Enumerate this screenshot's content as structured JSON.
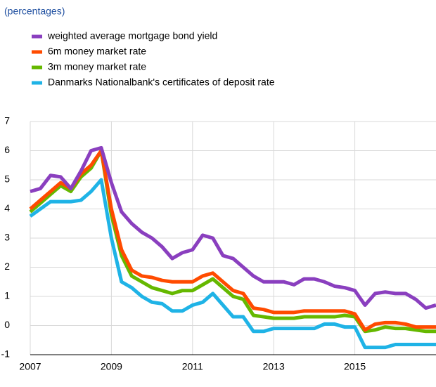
{
  "chart_data": {
    "type": "line",
    "subtitle": "(percentages)",
    "x": [
      2007,
      2007.25,
      2007.5,
      2007.75,
      2008,
      2008.25,
      2008.5,
      2008.75,
      2009,
      2009.25,
      2009.5,
      2009.75,
      2010,
      2010.25,
      2010.5,
      2010.75,
      2011,
      2011.25,
      2011.5,
      2011.75,
      2012,
      2012.25,
      2012.5,
      2012.75,
      2013,
      2013.25,
      2013.5,
      2013.75,
      2014,
      2014.25,
      2014.5,
      2014.75,
      2015,
      2015.25,
      2015.5,
      2015.75,
      2016,
      2016.25,
      2016.5,
      2016.75,
      2017
    ],
    "series": [
      {
        "name": "weighted average mortgage bond yield",
        "color": "#8a3fbf",
        "values": [
          4.6,
          4.7,
          5.15,
          5.1,
          4.7,
          5.3,
          6.0,
          6.1,
          4.9,
          3.9,
          3.5,
          3.2,
          3.0,
          2.7,
          2.3,
          2.5,
          2.6,
          3.1,
          3.0,
          2.4,
          2.3,
          2.0,
          1.7,
          1.5,
          1.5,
          1.5,
          1.4,
          1.6,
          1.6,
          1.5,
          1.35,
          1.3,
          1.2,
          0.7,
          1.1,
          1.15,
          1.1,
          1.1,
          0.9,
          0.6,
          0.7
        ]
      },
      {
        "name": "6m money market rate",
        "color": "#ff4b00",
        "values": [
          4.0,
          4.3,
          4.6,
          4.9,
          4.7,
          5.2,
          5.5,
          6.0,
          4.0,
          2.6,
          1.9,
          1.7,
          1.65,
          1.55,
          1.5,
          1.5,
          1.5,
          1.7,
          1.8,
          1.5,
          1.2,
          1.1,
          0.6,
          0.55,
          0.45,
          0.45,
          0.45,
          0.5,
          0.5,
          0.5,
          0.5,
          0.5,
          0.4,
          -0.15,
          0.05,
          0.1,
          0.1,
          0.05,
          -0.05,
          -0.05,
          -0.05
        ]
      },
      {
        "name": "3m money market rate",
        "color": "#65b800",
        "values": [
          3.9,
          4.2,
          4.5,
          4.8,
          4.6,
          5.1,
          5.4,
          6.0,
          3.8,
          2.4,
          1.7,
          1.5,
          1.3,
          1.2,
          1.1,
          1.2,
          1.2,
          1.4,
          1.6,
          1.3,
          1.0,
          0.9,
          0.35,
          0.3,
          0.25,
          0.25,
          0.25,
          0.3,
          0.3,
          0.3,
          0.3,
          0.35,
          0.3,
          -0.2,
          -0.15,
          -0.05,
          -0.1,
          -0.1,
          -0.15,
          -0.2,
          -0.2
        ]
      },
      {
        "name": "Danmarks Nationalbank's certificates of deposit rate",
        "color": "#1fb3e6",
        "values": [
          3.75,
          4.0,
          4.25,
          4.25,
          4.25,
          4.3,
          4.6,
          5.0,
          3.0,
          1.5,
          1.3,
          1.0,
          0.8,
          0.75,
          0.5,
          0.5,
          0.7,
          0.8,
          1.1,
          0.7,
          0.3,
          0.3,
          -0.2,
          -0.2,
          -0.1,
          -0.1,
          -0.1,
          -0.1,
          -0.1,
          0.05,
          0.05,
          -0.05,
          -0.05,
          -0.75,
          -0.75,
          -0.75,
          -0.65,
          -0.65,
          -0.65,
          -0.65,
          -0.65
        ]
      }
    ],
    "xlim": [
      2007,
      2017
    ],
    "xticks": [
      2007,
      2009,
      2011,
      2013,
      2015
    ],
    "ylim": [
      -1,
      7
    ],
    "yticks": [
      -1,
      0,
      1,
      2,
      3,
      4,
      5,
      6,
      7
    ],
    "grid": true
  }
}
